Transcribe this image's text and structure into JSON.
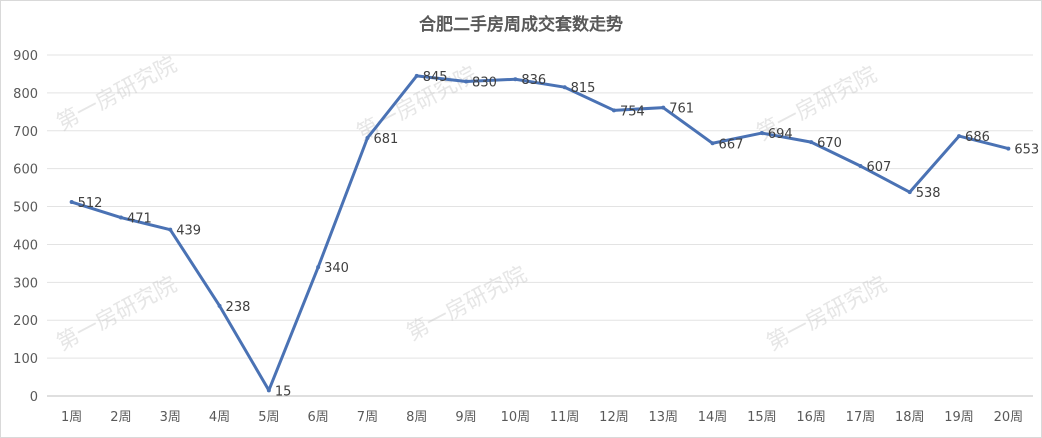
{
  "chart_data": {
    "type": "line",
    "title": "合肥二手房周成交套数走势",
    "xlabel": "",
    "ylabel": "",
    "categories": [
      "1周",
      "2周",
      "3周",
      "4周",
      "5周",
      "6周",
      "7周",
      "8周",
      "9周",
      "10周",
      "11周",
      "12周",
      "13周",
      "14周",
      "15周",
      "16周",
      "17周",
      "18周",
      "19周",
      "20周"
    ],
    "series": [
      {
        "values": [
          512,
          471,
          439,
          238,
          15,
          340,
          681,
          845,
          830,
          836,
          815,
          754,
          761,
          667,
          694,
          670,
          607,
          538,
          686,
          653
        ]
      }
    ],
    "ylim": [
      0,
      900
    ],
    "yticks": [
      0,
      100,
      200,
      300,
      400,
      500,
      600,
      700,
      800,
      900
    ],
    "grid": true,
    "legend": "none",
    "line_color": "#4a72b4"
  },
  "watermark": "第一房研究院"
}
